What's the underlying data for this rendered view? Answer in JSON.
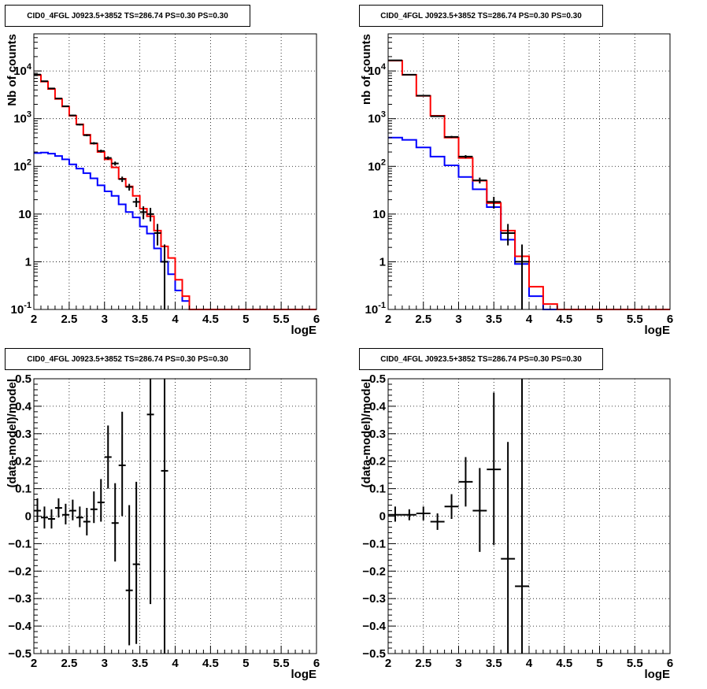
{
  "colors": {
    "model_total": "#ff0000",
    "model_source": "#0000ff",
    "data": "#000000",
    "grid": "#000000"
  },
  "chart_data": [
    {
      "id": "tl",
      "type": "histogram",
      "title": "CID0_4FGL J0923.5+3852 TS=286.74 PS=0.30 PS=0.30",
      "xlabel": "logE",
      "ylabel": "Nb of counts",
      "xlim": [
        2,
        6
      ],
      "ylim": [
        0.1,
        60000
      ],
      "log_y": true,
      "grid": true,
      "x_ticks": [
        "2",
        "2.5",
        "3",
        "3.5",
        "4",
        "4.5",
        "5",
        "5.5",
        "6"
      ],
      "y_ticks": [
        {
          "v": 0.1,
          "label": "10",
          "sup": "-1"
        },
        {
          "v": 1,
          "label": "1",
          "sup": ""
        },
        {
          "v": 10,
          "label": "10",
          "sup": ""
        },
        {
          "v": 100,
          "label": "10",
          "sup": "2"
        },
        {
          "v": 1000,
          "label": "10",
          "sup": "3"
        },
        {
          "v": 10000,
          "label": "10",
          "sup": "4"
        }
      ],
      "bin_edges": [
        2.0,
        2.1,
        2.2,
        2.3,
        2.4,
        2.5,
        2.6,
        2.7,
        2.8,
        2.9,
        3.0,
        3.1,
        3.2,
        3.3,
        3.4,
        3.5,
        3.6,
        3.7,
        3.8,
        3.9,
        4.0,
        4.1,
        4.2,
        4.3,
        4.4,
        4.5,
        4.6,
        4.7,
        4.8,
        4.9,
        5.0,
        5.1,
        5.2,
        5.3,
        5.4,
        5.5,
        5.6,
        5.7,
        5.8,
        5.9,
        6.0
      ],
      "series": [
        {
          "name": "",
          "color": "#ff0000",
          "values": [
            8200,
            6000,
            4200,
            2600,
            1800,
            1150,
            760,
            460,
            300,
            200,
            140,
            95,
            55,
            38,
            24,
            13,
            9,
            4.5,
            2.1,
            1.2,
            0.42,
            0.19,
            0.1,
            0.1,
            0.1,
            0.1,
            0.1,
            0.1,
            0.1,
            0.1,
            0.1,
            0.1,
            0.1,
            0.1,
            0.1,
            0.1,
            0.1,
            0.1,
            0.1,
            0.1
          ]
        },
        {
          "name": "",
          "color": "#0000ff",
          "values": [
            190,
            195,
            185,
            165,
            140,
            110,
            90,
            72,
            56,
            40,
            30,
            24,
            16,
            11,
            8.5,
            5.5,
            3.9,
            1.9,
            1.0,
            0.55,
            0.25,
            0.15,
            0.1,
            0.1,
            0.1,
            0.1,
            0.1,
            0.1,
            0.1,
            0.1,
            0.1,
            0.1,
            0.1,
            0.1,
            0.1,
            0.1,
            0.1,
            0.1,
            0.1,
            0.1
          ]
        }
      ],
      "points": [
        {
          "x": 2.05,
          "y": 8400,
          "lo": 8300,
          "hi": 8500,
          "xe": 0.05
        },
        {
          "x": 2.15,
          "y": 6100,
          "lo": 6020,
          "hi": 6180,
          "xe": 0.05
        },
        {
          "x": 2.25,
          "y": 4300,
          "lo": 4230,
          "hi": 4370,
          "xe": 0.05
        },
        {
          "x": 2.35,
          "y": 2650,
          "lo": 2600,
          "hi": 2700,
          "xe": 0.05
        },
        {
          "x": 2.45,
          "y": 1820,
          "lo": 1780,
          "hi": 1860,
          "xe": 0.05
        },
        {
          "x": 2.55,
          "y": 1170,
          "lo": 1135,
          "hi": 1205,
          "xe": 0.05
        },
        {
          "x": 2.65,
          "y": 750,
          "lo": 722,
          "hi": 778,
          "xe": 0.05
        },
        {
          "x": 2.75,
          "y": 450,
          "lo": 428,
          "hi": 472,
          "xe": 0.05
        },
        {
          "x": 2.85,
          "y": 305,
          "lo": 288,
          "hi": 322,
          "xe": 0.05
        },
        {
          "x": 2.95,
          "y": 210,
          "lo": 196,
          "hi": 224,
          "xe": 0.05
        },
        {
          "x": 3.05,
          "y": 150,
          "lo": 138,
          "hi": 162,
          "xe": 0.05
        },
        {
          "x": 3.15,
          "y": 115,
          "lo": 104,
          "hi": 126,
          "xe": 0.05
        },
        {
          "x": 3.25,
          "y": 54,
          "lo": 47,
          "hi": 61,
          "xe": 0.05
        },
        {
          "x": 3.35,
          "y": 37,
          "lo": 31,
          "hi": 43,
          "xe": 0.05
        },
        {
          "x": 3.45,
          "y": 18,
          "lo": 14,
          "hi": 22,
          "xe": 0.05
        },
        {
          "x": 3.55,
          "y": 11,
          "lo": 7.8,
          "hi": 14.5,
          "xe": 0.05
        },
        {
          "x": 3.65,
          "y": 10,
          "lo": 7,
          "hi": 13.5,
          "xe": 0.05
        },
        {
          "x": 3.75,
          "y": 4,
          "lo": 2.2,
          "hi": 6.2,
          "xe": 0.05
        },
        {
          "x": 3.85,
          "y": 1,
          "lo": 0.1,
          "hi": 2.3,
          "xe": 0.05
        }
      ]
    },
    {
      "id": "tr",
      "type": "histogram",
      "title": "CID0_4FGL J0923.5+3852 TS=286.74 PS=0.30 PS=0.30",
      "xlabel": "logE",
      "ylabel": "nb of counts",
      "xlim": [
        2,
        6
      ],
      "ylim": [
        0.1,
        60000
      ],
      "log_y": true,
      "grid": true,
      "x_ticks": [
        "2",
        "2.5",
        "3",
        "3.5",
        "4",
        "4.5",
        "5",
        "5.5",
        "6"
      ],
      "y_ticks": [
        {
          "v": 0.1,
          "label": "10",
          "sup": "-1"
        },
        {
          "v": 1,
          "label": "1",
          "sup": ""
        },
        {
          "v": 10,
          "label": "10",
          "sup": ""
        },
        {
          "v": 100,
          "label": "10",
          "sup": "2"
        },
        {
          "v": 1000,
          "label": "10",
          "sup": "3"
        },
        {
          "v": 10000,
          "label": "10",
          "sup": "4"
        }
      ],
      "bin_edges": [
        2.0,
        2.2,
        2.4,
        2.6,
        2.8,
        3.0,
        3.2,
        3.4,
        3.6,
        3.8,
        4.0,
        4.2,
        4.4,
        4.6,
        4.8,
        5.0,
        5.2,
        5.4,
        5.6,
        5.8,
        6.0
      ],
      "series": [
        {
          "name": "",
          "color": "#ff0000",
          "values": [
            16500,
            8300,
            3000,
            1150,
            400,
            150,
            50,
            17,
            4.5,
            1.3,
            0.3,
            0.13,
            0.1,
            0.1,
            0.1,
            0.1,
            0.1,
            0.1,
            0.1,
            0.1
          ]
        },
        {
          "name": "",
          "color": "#0000ff",
          "values": [
            400,
            360,
            250,
            160,
            105,
            60,
            33,
            14,
            2.9,
            0.9,
            0.19,
            0.1,
            0.1,
            0.1,
            0.1,
            0.1,
            0.1,
            0.1,
            0.1,
            0.1
          ]
        }
      ],
      "points": [
        {
          "x": 2.1,
          "y": 16700,
          "lo": 16550,
          "hi": 16850,
          "xe": 0.1
        },
        {
          "x": 2.3,
          "y": 8350,
          "lo": 8250,
          "hi": 8450,
          "xe": 0.1
        },
        {
          "x": 2.5,
          "y": 3030,
          "lo": 2975,
          "hi": 3085,
          "xe": 0.1
        },
        {
          "x": 2.7,
          "y": 1125,
          "lo": 1092,
          "hi": 1158,
          "xe": 0.1
        },
        {
          "x": 2.9,
          "y": 415,
          "lo": 395,
          "hi": 435,
          "xe": 0.1
        },
        {
          "x": 3.1,
          "y": 160,
          "lo": 148,
          "hi": 172,
          "xe": 0.1
        },
        {
          "x": 3.3,
          "y": 51,
          "lo": 44,
          "hi": 58,
          "xe": 0.1
        },
        {
          "x": 3.5,
          "y": 18,
          "lo": 13,
          "hi": 23,
          "xe": 0.1
        },
        {
          "x": 3.7,
          "y": 4,
          "lo": 2.2,
          "hi": 6.2,
          "xe": 0.1
        },
        {
          "x": 3.9,
          "y": 1,
          "lo": 0.1,
          "hi": 2.3,
          "xe": 0.1
        }
      ]
    },
    {
      "id": "bl",
      "type": "scatter",
      "title": "CID0_4FGL J0923.5+3852 TS=286.74 PS=0.30 PS=0.30",
      "xlabel": "logE",
      "ylabel": "(data-model)/model",
      "xlim": [
        2,
        6
      ],
      "ylim": [
        -0.5,
        0.5
      ],
      "log_y": false,
      "grid": true,
      "x_ticks": [
        "2",
        "2.5",
        "3",
        "3.5",
        "4",
        "4.5",
        "5",
        "5.5",
        "6"
      ],
      "y_ticks": [
        {
          "v": -0.5,
          "label": "−0.5"
        },
        {
          "v": -0.4,
          "label": "−0.4"
        },
        {
          "v": -0.3,
          "label": "−0.3"
        },
        {
          "v": -0.2,
          "label": "−0.2"
        },
        {
          "v": -0.1,
          "label": "−0.1"
        },
        {
          "v": 0,
          "label": "0"
        },
        {
          "v": 0.1,
          "label": "0.1"
        },
        {
          "v": 0.2,
          "label": "0.2"
        },
        {
          "v": 0.3,
          "label": "0.3"
        },
        {
          "v": 0.4,
          "label": "0.4"
        },
        {
          "v": 0.5,
          "label": "0.5"
        }
      ],
      "points": [
        {
          "x": 2.05,
          "y": 0.02,
          "lo": -0.02,
          "hi": 0.065,
          "xe": 0.05
        },
        {
          "x": 2.15,
          "y": -0.005,
          "lo": -0.045,
          "hi": 0.035,
          "xe": 0.05
        },
        {
          "x": 2.25,
          "y": -0.01,
          "lo": -0.045,
          "hi": 0.025,
          "xe": 0.05
        },
        {
          "x": 2.35,
          "y": 0.03,
          "lo": -0.005,
          "hi": 0.065,
          "xe": 0.05
        },
        {
          "x": 2.45,
          "y": 0.005,
          "lo": -0.03,
          "hi": 0.045,
          "xe": 0.05
        },
        {
          "x": 2.55,
          "y": 0.02,
          "lo": -0.015,
          "hi": 0.06,
          "xe": 0.05
        },
        {
          "x": 2.65,
          "y": -0.005,
          "lo": -0.04,
          "hi": 0.035,
          "xe": 0.05
        },
        {
          "x": 2.75,
          "y": -0.02,
          "lo": -0.07,
          "hi": 0.03,
          "xe": 0.05
        },
        {
          "x": 2.85,
          "y": 0.025,
          "lo": -0.025,
          "hi": 0.09,
          "xe": 0.05
        },
        {
          "x": 2.95,
          "y": 0.05,
          "lo": -0.02,
          "hi": 0.135,
          "xe": 0.05
        },
        {
          "x": 3.05,
          "y": 0.215,
          "lo": 0.1,
          "hi": 0.33,
          "xe": 0.05
        },
        {
          "x": 3.15,
          "y": -0.025,
          "lo": -0.165,
          "hi": 0.12,
          "xe": 0.05
        },
        {
          "x": 3.25,
          "y": 0.185,
          "lo": 0.0,
          "hi": 0.38,
          "xe": 0.05
        },
        {
          "x": 3.35,
          "y": -0.27,
          "lo": -0.47,
          "hi": 0.04,
          "xe": 0.05
        },
        {
          "x": 3.45,
          "y": -0.175,
          "lo": -0.465,
          "hi": 0.125,
          "xe": 0.05
        },
        {
          "x": 3.65,
          "y": 0.37,
          "lo": -0.32,
          "hi": 0.5,
          "xe": 0.05
        },
        {
          "x": 3.85,
          "y": 0.165,
          "lo": -0.5,
          "hi": 0.5,
          "xe": 0.05
        }
      ]
    },
    {
      "id": "br",
      "type": "scatter",
      "title": "CID0_4FGL J0923.5+3852 TS=286.74 PS=0.30 PS=0.30",
      "xlabel": "logE",
      "ylabel": "(data-model)/model",
      "xlim": [
        2,
        6
      ],
      "ylim": [
        -0.5,
        0.5
      ],
      "log_y": false,
      "grid": true,
      "x_ticks": [
        "2",
        "2.5",
        "3",
        "3.5",
        "4",
        "4.5",
        "5",
        "5.5",
        "6"
      ],
      "y_ticks": [
        {
          "v": -0.5,
          "label": "−0.5"
        },
        {
          "v": -0.4,
          "label": "−0.4"
        },
        {
          "v": -0.3,
          "label": "−0.3"
        },
        {
          "v": -0.2,
          "label": "−0.2"
        },
        {
          "v": -0.1,
          "label": "−0.1"
        },
        {
          "v": 0,
          "label": "0"
        },
        {
          "v": 0.1,
          "label": "0.1"
        },
        {
          "v": 0.2,
          "label": "0.2"
        },
        {
          "v": 0.3,
          "label": "0.3"
        },
        {
          "v": 0.4,
          "label": "0.4"
        },
        {
          "v": 0.5,
          "label": "0.5"
        }
      ],
      "points": [
        {
          "x": 2.1,
          "y": 0.005,
          "lo": -0.02,
          "hi": 0.035,
          "xe": 0.1
        },
        {
          "x": 2.3,
          "y": 0.005,
          "lo": -0.015,
          "hi": 0.025,
          "xe": 0.1
        },
        {
          "x": 2.5,
          "y": 0.01,
          "lo": -0.015,
          "hi": 0.035,
          "xe": 0.1
        },
        {
          "x": 2.7,
          "y": -0.02,
          "lo": -0.05,
          "hi": 0.01,
          "xe": 0.1
        },
        {
          "x": 2.9,
          "y": 0.035,
          "lo": -0.01,
          "hi": 0.08,
          "xe": 0.1
        },
        {
          "x": 3.1,
          "y": 0.125,
          "lo": 0.035,
          "hi": 0.215,
          "xe": 0.1
        },
        {
          "x": 3.3,
          "y": 0.02,
          "lo": -0.13,
          "hi": 0.175,
          "xe": 0.1
        },
        {
          "x": 3.5,
          "y": 0.17,
          "lo": -0.105,
          "hi": 0.45,
          "xe": 0.1
        },
        {
          "x": 3.7,
          "y": -0.155,
          "lo": -0.5,
          "hi": 0.27,
          "xe": 0.1
        },
        {
          "x": 3.9,
          "y": -0.255,
          "lo": -0.5,
          "hi": 0.5,
          "xe": 0.1
        }
      ]
    }
  ]
}
